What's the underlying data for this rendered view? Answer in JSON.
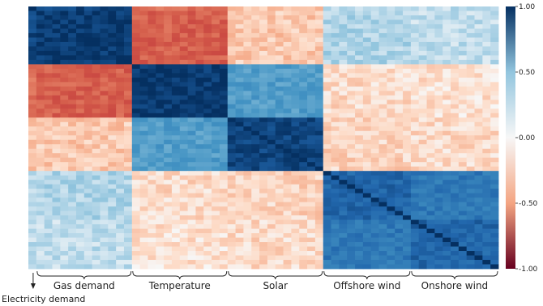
{
  "chart_data": {
    "type": "heatmap",
    "title": "",
    "xlabel": "",
    "ylabel": "",
    "colormap": "RdBu",
    "colors": {
      "min": "#67001f",
      "neg_mid": "#f4a582",
      "zero": "#f7f7f7",
      "pos_mid": "#92c5de",
      "max": "#053061"
    },
    "value_range": [
      -1.0,
      1.0
    ],
    "colorbar_ticks": [
      "1.00",
      "0.50",
      "0.00",
      "-0.50",
      "-1.00"
    ],
    "colorbar_tick_values": [
      1.0,
      0.5,
      0.0,
      -0.5,
      -1.0
    ],
    "groups": [
      {
        "label": "Electricity demand",
        "size": 1
      },
      {
        "label": "Gas demand",
        "size": 12
      },
      {
        "label": "Temperature",
        "size": 12
      },
      {
        "label": "Solar",
        "size": 12
      },
      {
        "label": "Offshore wind",
        "size": 11
      },
      {
        "label": "Onshore wind",
        "size": 11
      }
    ],
    "block_correlation": [
      [
        1.0,
        0.9,
        -0.45,
        -0.18,
        0.15,
        0.15
      ],
      [
        0.9,
        0.95,
        -0.5,
        -0.15,
        0.18,
        0.14
      ],
      [
        -0.45,
        -0.5,
        0.95,
        0.45,
        -0.1,
        -0.08
      ],
      [
        -0.18,
        -0.15,
        0.45,
        0.9,
        -0.12,
        -0.1
      ],
      [
        0.15,
        0.18,
        -0.1,
        -0.12,
        0.75,
        0.65
      ],
      [
        0.15,
        0.14,
        -0.08,
        -0.1,
        0.65,
        0.75
      ]
    ]
  }
}
